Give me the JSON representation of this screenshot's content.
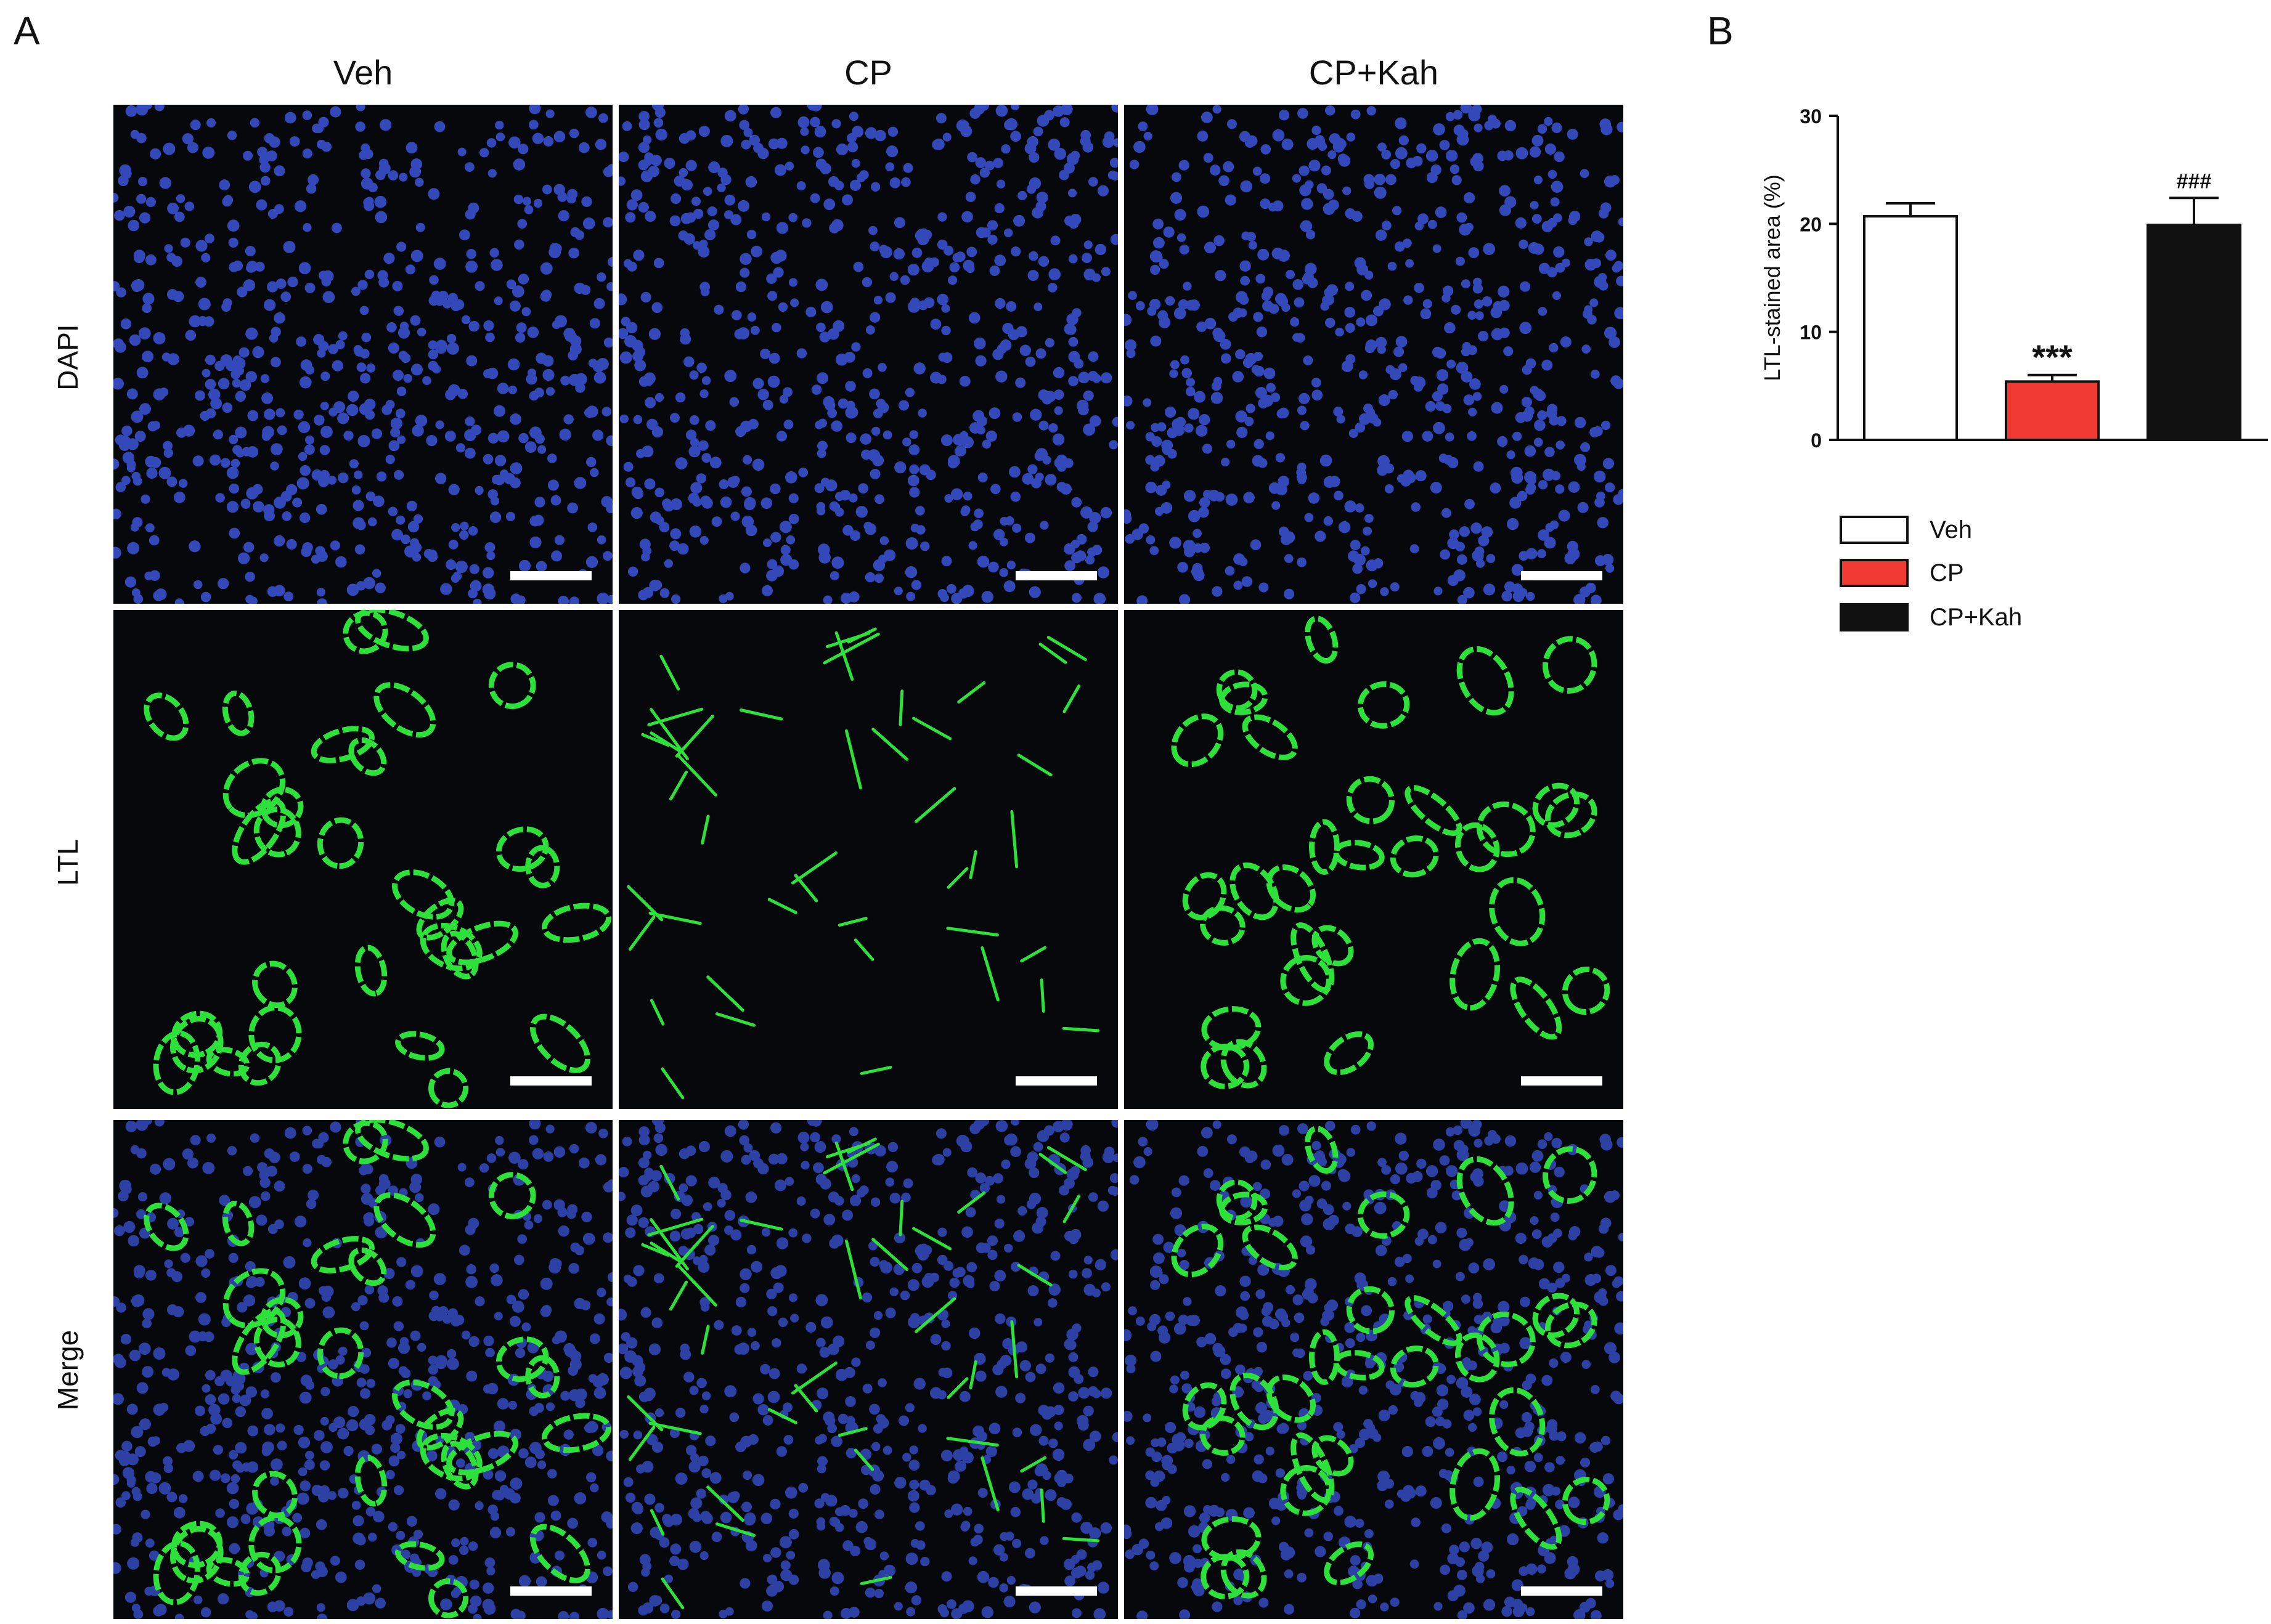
{
  "figure": {
    "panel_a": "A",
    "panel_b": "B",
    "columns": [
      "Veh",
      "CP",
      "CP+Kah"
    ],
    "rows": [
      "DAPI",
      "LTL",
      "Merge"
    ]
  },
  "micrographs": {
    "channel_colors": {
      "DAPI": "#3b55d9",
      "LTL": "#2ee03a",
      "background": "#06080c"
    },
    "tiles": [
      {
        "row": "DAPI",
        "column": "Veh"
      },
      {
        "row": "DAPI",
        "column": "CP"
      },
      {
        "row": "DAPI",
        "column": "CP+Kah"
      },
      {
        "row": "LTL",
        "column": "Veh"
      },
      {
        "row": "LTL",
        "column": "CP"
      },
      {
        "row": "LTL",
        "column": "CP+Kah"
      },
      {
        "row": "Merge",
        "column": "Veh"
      },
      {
        "row": "Merge",
        "column": "CP"
      },
      {
        "row": "Merge",
        "column": "CP+Kah"
      }
    ]
  },
  "chart_data": {
    "type": "bar",
    "categories": [
      "Veh",
      "CP",
      "CP+Kah"
    ],
    "values": [
      20.7,
      5.4,
      19.9
    ],
    "errors": [
      1.2,
      0.6,
      2.5
    ],
    "colors": [
      "#ffffff",
      "#f03a32",
      "#111111"
    ],
    "annotations": [
      "",
      "***",
      "###"
    ],
    "ylabel": "LTL-stained area (%)",
    "ylim": [
      0,
      30
    ],
    "yticks": [
      "0",
      "10",
      "20",
      "30"
    ],
    "legend": [
      {
        "label": "Veh",
        "color": "#ffffff"
      },
      {
        "label": "CP",
        "color": "#f03a32"
      },
      {
        "label": "CP+Kah",
        "color": "#111111"
      }
    ],
    "legend_position": "below"
  }
}
